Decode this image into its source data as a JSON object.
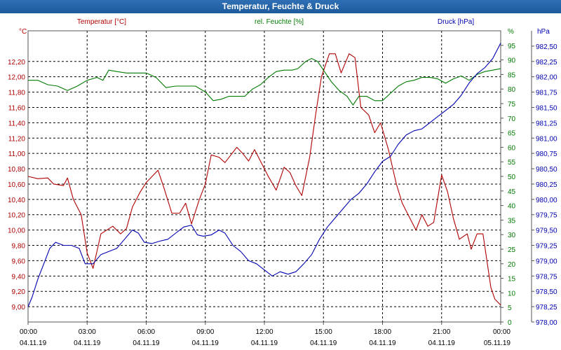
{
  "chart_data": {
    "type": "line",
    "title": "Temperatur, Feuchte & Druck",
    "colors": {
      "temperature": "#b00000",
      "humidity": "#007a00",
      "pressure": "#0000b0",
      "grid": "#000000",
      "axis": "#555555"
    },
    "x_ticks": [
      {
        "time": "00:00",
        "date": "04.11.19"
      },
      {
        "time": "03:00",
        "date": "04.11.19"
      },
      {
        "time": "06:00",
        "date": "04.11.19"
      },
      {
        "time": "09:00",
        "date": "04.11.19"
      },
      {
        "time": "12:00",
        "date": "04.11.19"
      },
      {
        "time": "15:00",
        "date": "04.11.19"
      },
      {
        "time": "18:00",
        "date": "04.11.19"
      },
      {
        "time": "21:00",
        "date": "04.11.19"
      },
      {
        "time": "00:00",
        "date": "05.11.19"
      }
    ],
    "x_range_hours": [
      0,
      24
    ],
    "axes": {
      "temperature": {
        "label": "Temperatur [°C]",
        "unit": "°C",
        "range": [
          8.8,
          12.6
        ],
        "ticks": [
          "9,00",
          "9,20",
          "9,40",
          "9,60",
          "9,80",
          "10,00",
          "10,20",
          "10,40",
          "10,60",
          "10,80",
          "11,00",
          "11,20",
          "11,40",
          "11,60",
          "11,80",
          "12,00",
          "12,20"
        ]
      },
      "humidity": {
        "label": "rel. Feuchte [%]",
        "unit": "%",
        "range": [
          0,
          100
        ],
        "ticks": [
          "0",
          "5",
          "10",
          "15",
          "20",
          "25",
          "30",
          "35",
          "40",
          "45",
          "50",
          "55",
          "60",
          "65",
          "70",
          "75",
          "80",
          "85",
          "90",
          "95"
        ]
      },
      "pressure": {
        "label": "Druck [hPa]",
        "unit": "hPa",
        "range": [
          978.0,
          982.75
        ],
        "ticks": [
          "978,00",
          "978,25",
          "978,50",
          "978,75",
          "979,00",
          "979,25",
          "979,50",
          "979,75",
          "980,00",
          "980,25",
          "980,50",
          "980,75",
          "981,00",
          "981,25",
          "981,50",
          "981,75",
          "982,00",
          "982,25",
          "982,50"
        ]
      }
    },
    "series": [
      {
        "name": "Temperatur [°C]",
        "axis": "temperature",
        "points": [
          [
            0,
            10.7
          ],
          [
            0.5,
            10.67
          ],
          [
            1,
            10.68
          ],
          [
            1.3,
            10.6
          ],
          [
            1.8,
            10.58
          ],
          [
            2,
            10.68
          ],
          [
            2.3,
            10.4
          ],
          [
            2.7,
            10.2
          ],
          [
            3,
            9.7
          ],
          [
            3.3,
            9.5
          ],
          [
            3.7,
            9.95
          ],
          [
            4.3,
            10.05
          ],
          [
            4.7,
            9.95
          ],
          [
            5,
            10.02
          ],
          [
            5.3,
            10.3
          ],
          [
            5.7,
            10.5
          ],
          [
            6,
            10.62
          ],
          [
            6.3,
            10.7
          ],
          [
            6.6,
            10.78
          ],
          [
            6.9,
            10.55
          ],
          [
            7.3,
            10.22
          ],
          [
            7.7,
            10.22
          ],
          [
            8,
            10.35
          ],
          [
            8.3,
            10.08
          ],
          [
            8.7,
            10.4
          ],
          [
            9,
            10.6
          ],
          [
            9.3,
            10.98
          ],
          [
            9.7,
            10.95
          ],
          [
            10,
            10.88
          ],
          [
            10.3,
            10.98
          ],
          [
            10.6,
            11.08
          ],
          [
            10.9,
            11.0
          ],
          [
            11.2,
            10.9
          ],
          [
            11.5,
            11.05
          ],
          [
            11.8,
            10.9
          ],
          [
            12.2,
            10.7
          ],
          [
            12.6,
            10.52
          ],
          [
            13,
            10.82
          ],
          [
            13.3,
            10.75
          ],
          [
            13.6,
            10.58
          ],
          [
            13.9,
            10.45
          ],
          [
            14.3,
            10.95
          ],
          [
            14.6,
            11.5
          ],
          [
            14.9,
            12.0
          ],
          [
            15.3,
            12.3
          ],
          [
            15.6,
            12.3
          ],
          [
            15.9,
            12.05
          ],
          [
            16.3,
            12.3
          ],
          [
            16.6,
            12.25
          ],
          [
            16.9,
            11.6
          ],
          [
            17.3,
            11.5
          ],
          [
            17.6,
            11.27
          ],
          [
            17.9,
            11.4
          ],
          [
            18.3,
            11.05
          ],
          [
            18.7,
            10.6
          ],
          [
            19,
            10.35
          ],
          [
            19.4,
            10.15
          ],
          [
            19.7,
            10.0
          ],
          [
            20,
            10.2
          ],
          [
            20.3,
            10.05
          ],
          [
            20.6,
            10.1
          ],
          [
            21,
            10.72
          ],
          [
            21.3,
            10.5
          ],
          [
            21.6,
            10.15
          ],
          [
            21.9,
            9.88
          ],
          [
            22.3,
            9.95
          ],
          [
            22.5,
            9.75
          ],
          [
            22.8,
            9.95
          ],
          [
            23.1,
            9.95
          ],
          [
            23.5,
            9.25
          ],
          [
            23.7,
            9.1
          ],
          [
            24,
            9.02
          ]
        ]
      },
      {
        "name": "rel. Feuchte [%]",
        "axis": "humidity",
        "points": [
          [
            0,
            83
          ],
          [
            0.5,
            83
          ],
          [
            1,
            81.5
          ],
          [
            1.5,
            81
          ],
          [
            2,
            79.5
          ],
          [
            2.5,
            81
          ],
          [
            3,
            83
          ],
          [
            3.5,
            84
          ],
          [
            3.8,
            83
          ],
          [
            4.1,
            86.5
          ],
          [
            4.5,
            86
          ],
          [
            5,
            85.5
          ],
          [
            5.5,
            85.5
          ],
          [
            6,
            85.5
          ],
          [
            6.5,
            84
          ],
          [
            7,
            80.5
          ],
          [
            7.5,
            81
          ],
          [
            8,
            81
          ],
          [
            8.5,
            81
          ],
          [
            9,
            79
          ],
          [
            9.4,
            76
          ],
          [
            9.8,
            76.5
          ],
          [
            10.2,
            77.5
          ],
          [
            10.6,
            77.5
          ],
          [
            11,
            77.5
          ],
          [
            11.4,
            80
          ],
          [
            11.8,
            81.5
          ],
          [
            12.2,
            84
          ],
          [
            12.6,
            86
          ],
          [
            13,
            86.5
          ],
          [
            13.4,
            86.5
          ],
          [
            13.7,
            87
          ],
          [
            14.1,
            89.5
          ],
          [
            14.4,
            90.5
          ],
          [
            14.7,
            89.5
          ],
          [
            15.1,
            85.5
          ],
          [
            15.4,
            82.5
          ],
          [
            15.8,
            79.5
          ],
          [
            16.2,
            77.5
          ],
          [
            16.5,
            74.5
          ],
          [
            16.8,
            77.5
          ],
          [
            17.2,
            77.5
          ],
          [
            17.6,
            76
          ],
          [
            18,
            76
          ],
          [
            18.4,
            78.5
          ],
          [
            18.8,
            81
          ],
          [
            19.2,
            82.5
          ],
          [
            19.6,
            83
          ],
          [
            20,
            84
          ],
          [
            20.4,
            84
          ],
          [
            20.8,
            83.5
          ],
          [
            21.2,
            82
          ],
          [
            21.6,
            83.5
          ],
          [
            22,
            84.5
          ],
          [
            22.4,
            83
          ],
          [
            22.8,
            85
          ],
          [
            23.2,
            86
          ],
          [
            23.6,
            86.5
          ],
          [
            24,
            87
          ]
        ]
      },
      {
        "name": "Druck [hPa]",
        "axis": "pressure",
        "points": [
          [
            0,
            978.25
          ],
          [
            0.2,
            978.4
          ],
          [
            0.5,
            978.7
          ],
          [
            0.8,
            978.95
          ],
          [
            1.1,
            979.2
          ],
          [
            1.4,
            979.3
          ],
          [
            1.8,
            979.25
          ],
          [
            2.2,
            979.25
          ],
          [
            2.6,
            979.2
          ],
          [
            2.9,
            978.95
          ],
          [
            3.3,
            978.95
          ],
          [
            3.7,
            979.1
          ],
          [
            4.1,
            979.15
          ],
          [
            4.5,
            979.2
          ],
          [
            4.9,
            979.35
          ],
          [
            5.3,
            979.5
          ],
          [
            5.6,
            979.45
          ],
          [
            5.9,
            979.3
          ],
          [
            6.3,
            979.28
          ],
          [
            6.7,
            979.32
          ],
          [
            7.1,
            979.35
          ],
          [
            7.5,
            979.45
          ],
          [
            7.9,
            979.55
          ],
          [
            8.3,
            979.58
          ],
          [
            8.6,
            979.42
          ],
          [
            8.9,
            979.4
          ],
          [
            9.3,
            979.42
          ],
          [
            9.7,
            979.5
          ],
          [
            10,
            979.45
          ],
          [
            10.4,
            979.25
          ],
          [
            10.8,
            979.15
          ],
          [
            11.2,
            979.0
          ],
          [
            11.6,
            978.95
          ],
          [
            12,
            978.85
          ],
          [
            12.4,
            978.75
          ],
          [
            12.8,
            978.82
          ],
          [
            13.2,
            978.78
          ],
          [
            13.6,
            978.82
          ],
          [
            14,
            978.95
          ],
          [
            14.4,
            979.1
          ],
          [
            14.8,
            979.35
          ],
          [
            15.2,
            979.55
          ],
          [
            15.6,
            979.7
          ],
          [
            16,
            979.85
          ],
          [
            16.4,
            980.0
          ],
          [
            16.8,
            980.1
          ],
          [
            17.2,
            980.25
          ],
          [
            17.6,
            980.45
          ],
          [
            18,
            980.62
          ],
          [
            18.4,
            980.7
          ],
          [
            18.8,
            980.9
          ],
          [
            19.2,
            981.05
          ],
          [
            19.6,
            981.12
          ],
          [
            20,
            981.15
          ],
          [
            20.4,
            981.25
          ],
          [
            20.8,
            981.35
          ],
          [
            21.2,
            981.45
          ],
          [
            21.6,
            981.55
          ],
          [
            22,
            981.7
          ],
          [
            22.4,
            981.9
          ],
          [
            22.8,
            982.05
          ],
          [
            23.2,
            982.15
          ],
          [
            23.6,
            982.3
          ],
          [
            24,
            982.55
          ]
        ]
      }
    ]
  }
}
